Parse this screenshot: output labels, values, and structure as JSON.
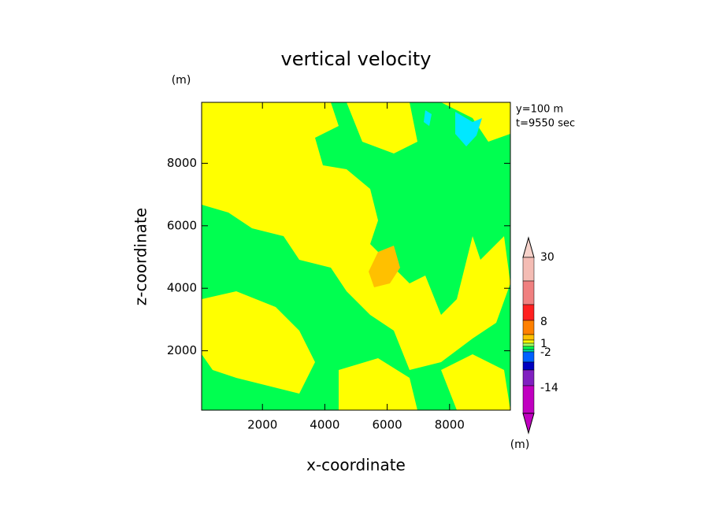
{
  "chart_data": {
    "type": "contour",
    "title": "vertical velocity",
    "x_label": "x-coordinate",
    "y_label": "z-coordinate",
    "y_unit": "(m)",
    "annotations": [
      "y=100 m",
      "t=9550 sec"
    ],
    "xlim": [
      50,
      9950
    ],
    "xticks": [
      2000,
      4000,
      6000,
      8000
    ],
    "ylim": [
      100,
      9950
    ],
    "yticks": [
      2000,
      4000,
      6000,
      8000
    ],
    "colorbar": {
      "unit": "(m)",
      "ticks": [
        30,
        8,
        1,
        -2,
        -14
      ],
      "colors": [
        "#f6d2ca",
        "#f4bcb4",
        "#f08080",
        "#ff2020",
        "#ff8000",
        "#ffc000",
        "#ffff00",
        "#a0ff60",
        "#00ff50",
        "#00e0a0",
        "#0060ff",
        "#0000c0",
        "#8020c0",
        "#c000c0",
        "#c000c0"
      ]
    }
  }
}
